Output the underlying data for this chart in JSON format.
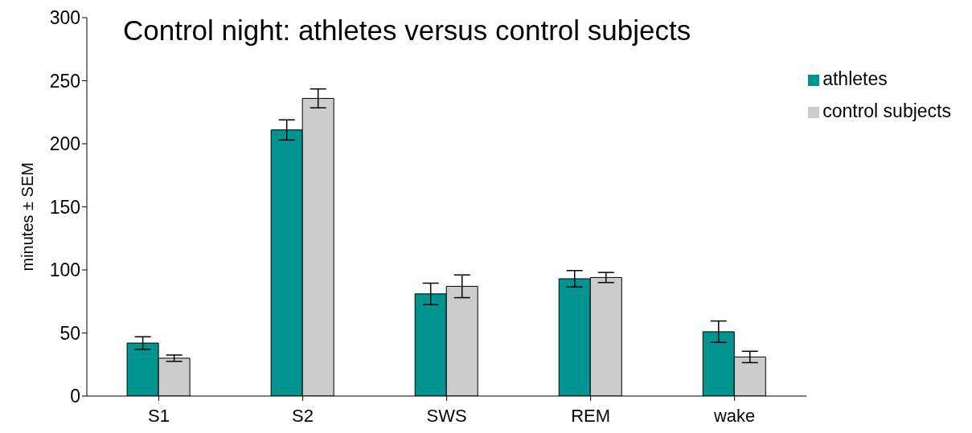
{
  "chart_data": {
    "type": "bar",
    "title": "Control night: athletes versus control subjects",
    "ylabel": "minutes ± SEM",
    "categories": [
      "S1",
      "S2",
      "SWS",
      "REM",
      "wake"
    ],
    "series": [
      {
        "name": "athletes",
        "color": "#009490",
        "values": [
          42,
          211,
          81,
          93,
          51
        ],
        "errors": [
          5,
          8,
          8.5,
          6.5,
          8.5
        ]
      },
      {
        "name": "control subjects",
        "color": "#cccccc",
        "values": [
          30,
          236,
          87,
          94,
          31
        ],
        "errors": [
          2.5,
          7.5,
          9,
          4,
          4.5
        ]
      }
    ],
    "ylim": [
      0,
      300
    ],
    "yticks": [
      0,
      50,
      100,
      150,
      200,
      250,
      300
    ],
    "grid": false,
    "legend": "top right"
  }
}
